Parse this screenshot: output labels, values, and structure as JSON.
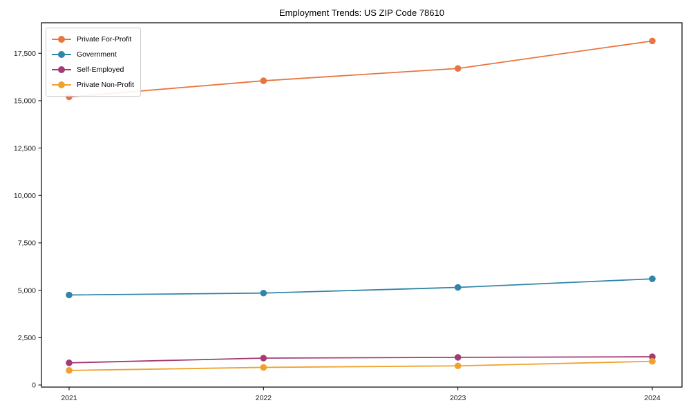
{
  "figure": {
    "background": "#ffffff",
    "axis_color": "#000000",
    "tick_label_color": "#1a1a1a"
  },
  "chart_data": {
    "type": "line",
    "title": "Employment Trends: US ZIP Code 78610",
    "xlabel": "",
    "ylabel": "",
    "grid": false,
    "legend_position": "upper left",
    "marker": "circle",
    "x": [
      2021,
      2022,
      2023,
      2024
    ],
    "x_tick_labels": [
      "2021",
      "2022",
      "2023",
      "2024"
    ],
    "y_ticks": [
      0,
      2500,
      5000,
      7500,
      10000,
      12500,
      15000,
      17500
    ],
    "y_tick_labels": [
      "0",
      "2,500",
      "5,000",
      "7,500",
      "10,000",
      "12,500",
      "15,000",
      "17,500"
    ],
    "ylim": [
      0,
      19110
    ],
    "series": [
      {
        "name": "Private For-Profit",
        "color": "#E8753F",
        "values": [
          15200,
          16050,
          16700,
          18150
        ]
      },
      {
        "name": "Government",
        "color": "#3186A8",
        "values": [
          4750,
          4850,
          5150,
          5600
        ]
      },
      {
        "name": "Self-Employed",
        "color": "#A33B74",
        "values": [
          1170,
          1420,
          1460,
          1490
        ]
      },
      {
        "name": "Private Non-Profit",
        "color": "#F0A22E",
        "values": [
          770,
          930,
          1010,
          1250
        ]
      }
    ]
  }
}
